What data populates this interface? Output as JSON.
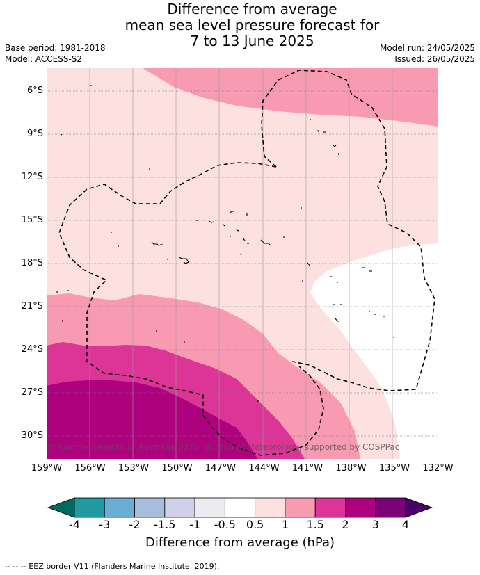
{
  "header": {
    "title_line1": "Difference from average",
    "title_line2": "mean sea level pressure forecast for",
    "title_line3": "7 to 13 June 2025",
    "base_period": "Base period: 1981-2018",
    "model": "Model: ACCESS-S2",
    "model_run": "Model run: 24/05/2025",
    "issued": "Issued: 26/05/2025"
  },
  "map": {
    "copyright": "© Commonwealth of Australia 2025, Bureau of Meteorology, supported by COSPPac",
    "lat_labels": [
      "6°S",
      "9°S",
      "12°S",
      "15°S",
      "18°S",
      "21°S",
      "24°S",
      "27°S",
      "30°S"
    ],
    "lon_labels": [
      "159°W",
      "156°W",
      "153°W",
      "150°W",
      "147°W",
      "144°W",
      "141°W",
      "138°W",
      "135°W",
      "132°W"
    ]
  },
  "colorbar": {
    "label": "Difference from average (hPa)",
    "ticks": [
      "-4",
      "-3",
      "-2",
      "-1.5",
      "-1",
      "-0.5",
      "0.5",
      "1",
      "1.5",
      "2",
      "3",
      "4"
    ],
    "colors": [
      "#006a60",
      "#1f9aa1",
      "#6aaed6",
      "#a6bddb",
      "#d0d1e6",
      "#ececf0",
      "#ffffff",
      "#fde0e0",
      "#f99ab3",
      "#dd3497",
      "#ae017e",
      "#7a0177",
      "#49006a"
    ]
  },
  "footnote": "--  --  -- EEZ border V11 (Flanders Marine Institute, 2019)."
}
